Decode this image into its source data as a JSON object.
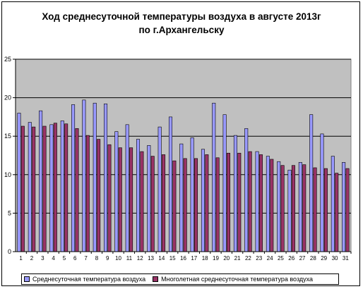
{
  "title_line1": "Ход среднесуточной температуры воздуха в августе 2013г",
  "title_line2": "по г.Архангельску",
  "legend": {
    "series1": "Среднесуточная температура воздуха",
    "series2": "Многолетная  среднесуточная  температура воздуха"
  },
  "colors": {
    "plot_background": "#c0c0c0",
    "series1": "#9999ff",
    "series2": "#993366",
    "grid": "#000000"
  },
  "chart_data": {
    "type": "bar",
    "title": "Ход среднесуточной температуры воздуха в августе 2013г по г.Архангельску",
    "xlabel": "",
    "ylabel": "",
    "ylim": [
      0,
      25
    ],
    "yticks": [
      0,
      5,
      10,
      15,
      20,
      25
    ],
    "grid": true,
    "legend_position": "bottom",
    "categories": [
      "1",
      "2",
      "3",
      "4",
      "5",
      "6",
      "7",
      "8",
      "9",
      "10",
      "11",
      "12",
      "13",
      "14",
      "15",
      "16",
      "17",
      "18",
      "19",
      "20",
      "21",
      "22",
      "23",
      "24",
      "25",
      "26",
      "27",
      "28",
      "29",
      "30",
      "31"
    ],
    "series": [
      {
        "name": "Среднесуточная температура воздуха",
        "values": [
          18.0,
          16.8,
          18.3,
          16.5,
          17.0,
          19.1,
          19.7,
          19.3,
          19.2,
          15.6,
          16.5,
          14.6,
          13.8,
          16.2,
          17.5,
          14.0,
          14.8,
          13.3,
          19.3,
          17.8,
          15.1,
          16.0,
          13.0,
          12.4,
          11.7,
          10.6,
          11.6,
          17.8,
          15.3,
          12.4,
          11.6
        ]
      },
      {
        "name": "Многолетная  среднесуточная  температура воздуха",
        "values": [
          16.3,
          16.2,
          16.3,
          16.7,
          16.6,
          16.0,
          15.1,
          14.6,
          13.9,
          13.5,
          13.5,
          13.0,
          12.4,
          12.6,
          11.8,
          12.1,
          12.1,
          12.6,
          12.2,
          12.8,
          12.8,
          13.0,
          12.6,
          12.0,
          11.2,
          11.2,
          11.3,
          10.9,
          10.8,
          10.2,
          10.8
        ]
      }
    ]
  }
}
